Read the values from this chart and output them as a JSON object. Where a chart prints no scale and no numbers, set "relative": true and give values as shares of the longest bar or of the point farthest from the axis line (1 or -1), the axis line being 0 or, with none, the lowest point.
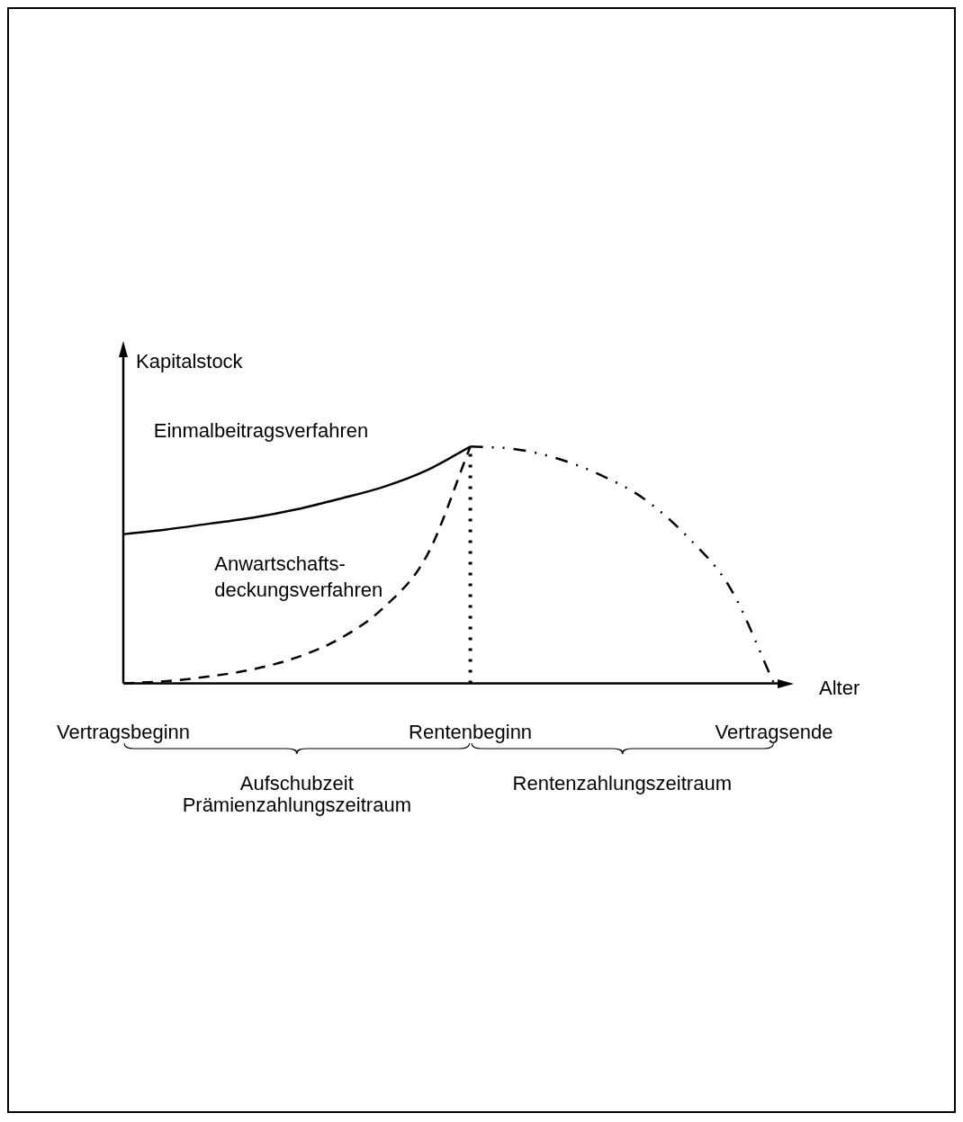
{
  "chart_data": {
    "type": "line",
    "relative": true,
    "xlabel": "Alter",
    "ylabel": "Kapitalstock",
    "categories": [
      "Vertragsbeginn",
      null,
      null,
      null,
      null,
      null,
      null,
      null,
      "Rentenbeginn",
      null,
      null,
      null,
      null,
      null,
      null,
      "Vertragsende"
    ],
    "series": [
      {
        "name": "Einmalbeitragsverfahren",
        "color": "#000000",
        "line_style": "solid",
        "values": [
          0.63,
          0.65,
          0.675,
          0.7,
          0.735,
          0.78,
          0.83,
          0.9,
          1,
          null,
          null,
          null,
          null,
          null,
          null,
          null
        ]
      },
      {
        "name": "Anwartschafts-\ndeckungsverfahren",
        "color": "#000000",
        "line_style": "dashed",
        "values": [
          0,
          0.01,
          0.03,
          0.06,
          0.11,
          0.19,
          0.32,
          0.54,
          1,
          null,
          null,
          null,
          null,
          null,
          null,
          null
        ]
      },
      {
        "color": "#000000",
        "line_style": "dashdot",
        "values": [
          null,
          null,
          null,
          null,
          null,
          null,
          null,
          null,
          1,
          0.99,
          0.95,
          0.88,
          0.78,
          0.62,
          0.4,
          0
        ]
      }
    ],
    "ref_lines": [
      {
        "axis": "x",
        "value": "Rentenbeginn",
        "color": "#000000",
        "line_style": "dotted"
      }
    ],
    "annotations": [
      "Aufschubzeit\nPrämienzahlungszeitraum",
      "Rentenzahlungszeitraum"
    ],
    "grid": false,
    "legend": false
  }
}
